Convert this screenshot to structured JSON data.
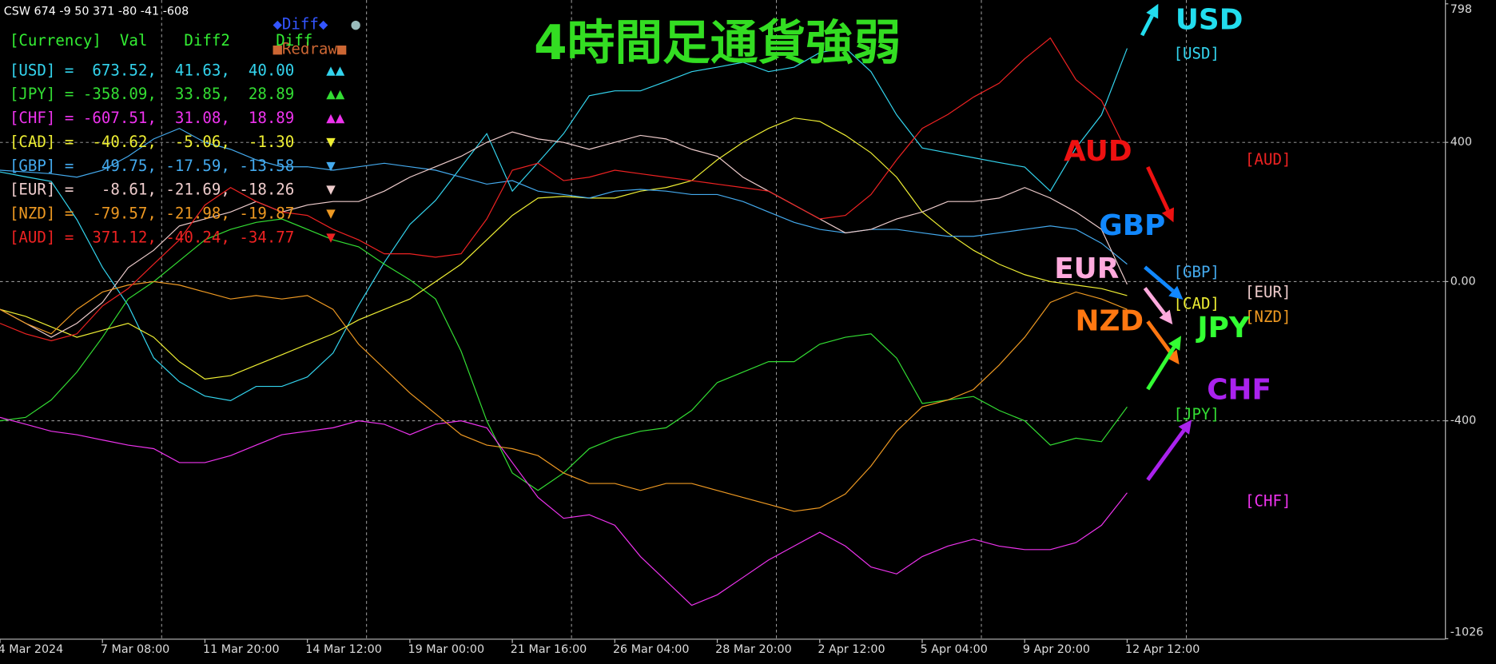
{
  "chart_data": {
    "type": "line",
    "header": "CSW 674 -9 50 371 -80 -41 -608",
    "title": "4時間足通貨強弱",
    "diff_button": "◆Diff◆",
    "dot_button": "●",
    "redraw_button": "■Redraw■",
    "panel": {
      "columns": "[Currency]  Val    Diff2     Diff",
      "rows": [
        {
          "text": " =  673.52,  41.63,  40.00",
          "arrows": "▲▲"
        },
        {
          "text": " = -358.09,  33.85,  28.89",
          "arrows": "▲▲"
        },
        {
          "text": " = -607.51,  31.08,  18.89",
          "arrows": "▲▲"
        },
        {
          "text": " =  -40.62,  -5.06,  -1.30",
          "arrows": "▼"
        },
        {
          "text": " =   49.75, -17.59, -13.58",
          "arrows": "▼"
        },
        {
          "text": " =   -8.61, -21.69, -18.26",
          "arrows": "▼"
        },
        {
          "text": " =  -79.57, -21.98, -19.87",
          "arrows": "▼"
        },
        {
          "text": " =  371.12, -40.24, -34.77",
          "arrows": "▼"
        }
      ]
    },
    "categories": [
      "4 Mar 2024",
      null,
      null,
      null,
      "7 Mar 08:00",
      null,
      null,
      null,
      "11 Mar 20:00",
      null,
      null,
      null,
      "14 Mar 12:00",
      null,
      null,
      null,
      "19 Mar 00:00",
      null,
      null,
      null,
      "21 Mar 16:00",
      null,
      null,
      null,
      "26 Mar 04:00",
      null,
      null,
      null,
      "28 Mar 20:00",
      null,
      null,
      null,
      "2 Apr 12:00",
      null,
      null,
      null,
      "5 Apr 04:00",
      null,
      null,
      null,
      "9 Apr 20:00",
      null,
      null,
      null,
      "12 Apr 12:00"
    ],
    "ylim": [
      -1026,
      798
    ],
    "yticks": [
      798,
      400,
      {
        "value": 0,
        "label": "0.00"
      },
      -400,
      -1026
    ],
    "grid": true,
    "series": [
      {
        "name": "[USD]",
        "color": "#33d4ee",
        "values": [
          315,
          301,
          288,
          178,
          41,
          -68,
          -219,
          -288,
          -329,
          -342,
          -301,
          -301,
          -274,
          -205,
          -68,
          55,
          164,
          233,
          329,
          425,
          260,
          342,
          425,
          534,
          548,
          548,
          575,
          603,
          616,
          630,
          603,
          616,
          658,
          671,
          603,
          479,
          384,
          370,
          356,
          342,
          329,
          260,
          384,
          479,
          670
        ]
      },
      {
        "name": "[JPY]",
        "color": "#33dd33",
        "values": [
          -400,
          -390,
          -340,
          -260,
          -160,
          -50,
          0,
          60,
          120,
          150,
          170,
          180,
          150,
          120,
          100,
          50,
          5,
          -50,
          -200,
          -400,
          -550,
          -600,
          -550,
          -480,
          -450,
          -430,
          -420,
          -370,
          -290,
          -260,
          -230,
          -230,
          -180,
          -160,
          -150,
          -220,
          -350,
          -340,
          -330,
          -370,
          -400,
          -470,
          -450,
          -460,
          -360
        ]
      },
      {
        "name": "[CHF]",
        "color": "#ee33ee",
        "values": [
          -390,
          -410,
          -430,
          -440,
          -455,
          -470,
          -480,
          -520,
          -520,
          -500,
          -470,
          -440,
          -430,
          -420,
          -400,
          -410,
          -440,
          -410,
          -400,
          -420,
          -520,
          -620,
          -680,
          -670,
          -700,
          -790,
          -860,
          -930,
          -900,
          -850,
          -800,
          -760,
          -720,
          -760,
          -820,
          -840,
          -790,
          -760,
          -740,
          -760,
          -770,
          -770,
          -750,
          -700,
          -607
        ]
      },
      {
        "name": "[CAD]",
        "color": "#eeee33",
        "values": [
          -80,
          -100,
          -130,
          -160,
          -140,
          -120,
          -160,
          -230,
          -280,
          -270,
          -240,
          -210,
          -180,
          -150,
          -110,
          -80,
          -50,
          0,
          50,
          120,
          190,
          240,
          245,
          240,
          240,
          260,
          270,
          290,
          350,
          400,
          440,
          470,
          460,
          420,
          370,
          300,
          200,
          140,
          90,
          50,
          20,
          0,
          -10,
          -20,
          -40
        ]
      },
      {
        "name": "[GBP]",
        "color": "#44aaee",
        "values": [
          320,
          315,
          310,
          300,
          320,
          360,
          410,
          440,
          400,
          380,
          350,
          330,
          330,
          320,
          330,
          340,
          330,
          320,
          300,
          280,
          290,
          260,
          250,
          240,
          260,
          265,
          260,
          250,
          250,
          230,
          200,
          170,
          150,
          140,
          150,
          150,
          140,
          130,
          130,
          140,
          150,
          160,
          150,
          110,
          50
        ]
      },
      {
        "name": "[EUR]",
        "color": "#eecccc",
        "values": [
          -80,
          -120,
          -160,
          -120,
          -60,
          40,
          90,
          160,
          180,
          200,
          230,
          200,
          220,
          230,
          230,
          260,
          300,
          330,
          360,
          400,
          430,
          410,
          400,
          380,
          400,
          420,
          410,
          380,
          360,
          300,
          260,
          220,
          180,
          140,
          150,
          180,
          200,
          230,
          230,
          240,
          270,
          240,
          200,
          150,
          -8
        ]
      },
      {
        "name": "[NZD]",
        "color": "#ee9922",
        "values": [
          -80,
          -120,
          -150,
          -80,
          -30,
          -10,
          0,
          -10,
          -30,
          -50,
          -40,
          -50,
          -40,
          -80,
          -180,
          -250,
          -320,
          -380,
          -440,
          -470,
          -480,
          -500,
          -550,
          -580,
          -580,
          -600,
          -580,
          -580,
          -600,
          -620,
          -640,
          -660,
          -650,
          -610,
          -530,
          -430,
          -360,
          -340,
          -310,
          -240,
          -160,
          -60,
          -30,
          -50,
          -80
        ]
      },
      {
        "name": "[AUD]",
        "color": "#ee2222",
        "values": [
          -120,
          -150,
          -170,
          -150,
          -70,
          -20,
          50,
          120,
          220,
          270,
          230,
          200,
          190,
          150,
          120,
          80,
          80,
          70,
          80,
          180,
          320,
          340,
          290,
          300,
          320,
          310,
          300,
          290,
          280,
          270,
          260,
          220,
          180,
          190,
          250,
          350,
          440,
          480,
          530,
          570,
          640,
          700,
          580,
          520,
          371
        ]
      }
    ],
    "annotations": [
      {
        "text": "USD",
        "color": "#22ddee"
      },
      {
        "text": "AUD",
        "color": "#ee1111"
      },
      {
        "text": "GBP",
        "color": "#1188ff"
      },
      {
        "text": "EUR",
        "color": "#ffaadd"
      },
      {
        "text": "NZD",
        "color": "#ff7711"
      },
      {
        "text": "JPY",
        "color": "#33ff33"
      },
      {
        "text": "CHF",
        "color": "#aa22ee"
      }
    ]
  }
}
